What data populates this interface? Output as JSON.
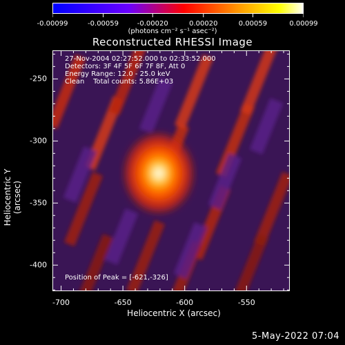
{
  "colorbar": {
    "tick_labels": [
      "-0.00099",
      "-0.00059",
      "-0.00020",
      "0.00020",
      "0.00059",
      "0.00099"
    ],
    "tick_values": [
      -0.00099,
      -0.00059,
      -0.0002,
      0.0002,
      0.00059,
      0.00099
    ],
    "range": [
      -0.00099,
      0.00099
    ],
    "unit_label": "(photons cm⁻² s⁻¹ asec⁻²)",
    "colors": [
      "#0000ff",
      "#6a00ff",
      "#ff0000",
      "#ffa000",
      "#ffff00",
      "#ffffff"
    ]
  },
  "chart_data": {
    "type": "heatmap",
    "title": "Reconstructed RHESSI Image",
    "xlabel": "Heliocentric X (arcsec)",
    "ylabel": "Heliocentric Y (arcsec)",
    "xlim": [
      -707,
      -515
    ],
    "ylim": [
      -421,
      -227
    ],
    "x_ticks": [
      -700,
      -650,
      -600,
      -550
    ],
    "x_tick_labels": [
      "-700",
      "-650",
      "-600",
      "-550"
    ],
    "y_ticks": [
      -250,
      -300,
      -350,
      -400
    ],
    "y_tick_labels": [
      "-250",
      "-300",
      "-350",
      "-400"
    ],
    "peak": {
      "x": -621,
      "y": -326
    },
    "info_lines": [
      "27-Nov-2004 02:27:52.000 to 02:33:52.000",
      "Detectors: 3F 4F 5F 6F 7F 8F, Att 0",
      "Energy Range: 12.0 - 25.0 keV",
      "Clean    Total counts: 5.86E+03"
    ],
    "peak_label": "Position of Peak = [-621,-326]",
    "colors": {
      "background": "#000000",
      "text": "#ffffff"
    }
  },
  "footer": {
    "timestamp": "5-May-2022 07:04"
  }
}
